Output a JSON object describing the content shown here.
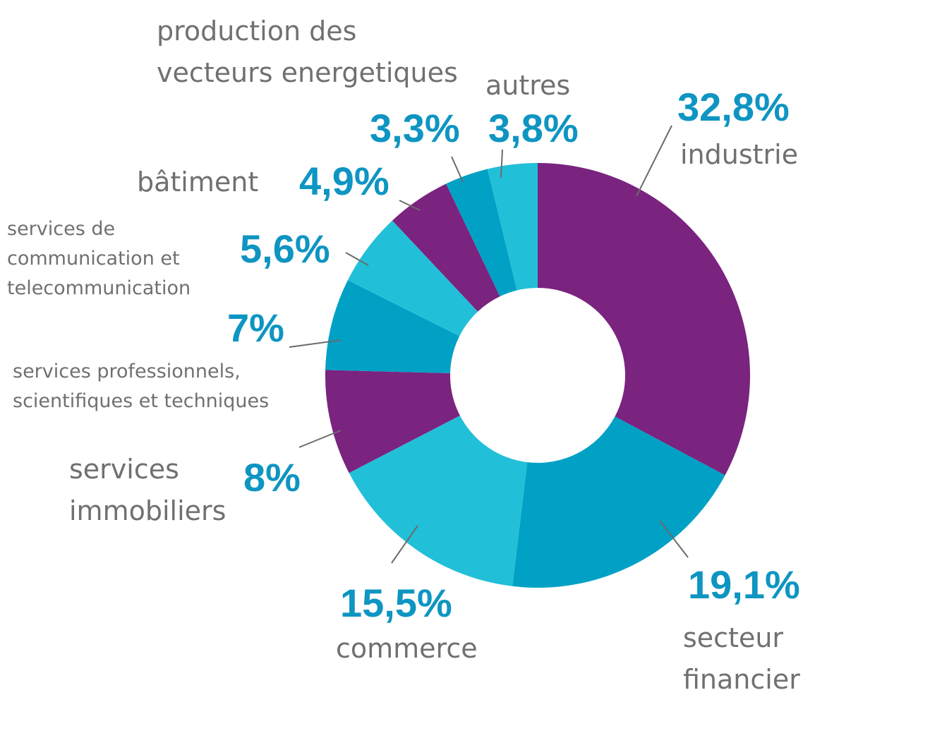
{
  "chart_data": {
    "type": "pie",
    "donut": true,
    "start": "top",
    "direction": "clockwise",
    "colors": {
      "purple": "#7A237F",
      "blue": "#00A1C5",
      "cyan": "#22BFD8"
    },
    "slices": [
      {
        "label_lines": [
          "industrie"
        ],
        "value": 32.8,
        "value_label": "32,8%",
        "color": "#7A237F"
      },
      {
        "label_lines": [
          "secteur",
          "financier"
        ],
        "value": 19.1,
        "value_label": "19,1%",
        "color": "#00A1C5"
      },
      {
        "label_lines": [
          "commerce"
        ],
        "value": 15.5,
        "value_label": "15,5%",
        "color": "#22BFD8"
      },
      {
        "label_lines": [
          "services",
          "immobiliers"
        ],
        "value": 8,
        "value_label": "8%",
        "color": "#7A237F"
      },
      {
        "label_lines": [
          "services professionnels,",
          "scientifiques et techniques"
        ],
        "value": 7,
        "value_label": "7%",
        "color": "#00A1C5"
      },
      {
        "label_lines": [
          "services de",
          "communication et",
          "telecommunication"
        ],
        "value": 5.6,
        "value_label": "5,6%",
        "color": "#22BFD8"
      },
      {
        "label_lines": [
          "bâtiment"
        ],
        "value": 4.9,
        "value_label": "4,9%",
        "color": "#7A237F"
      },
      {
        "label_lines": [
          "production des",
          "vecteurs energetiques"
        ],
        "value": 3.3,
        "value_label": "3,3%",
        "color": "#00A1C5"
      },
      {
        "label_lines": [
          "autres"
        ],
        "value": 3.8,
        "value_label": "3,8%",
        "color": "#22BFD8"
      }
    ]
  }
}
